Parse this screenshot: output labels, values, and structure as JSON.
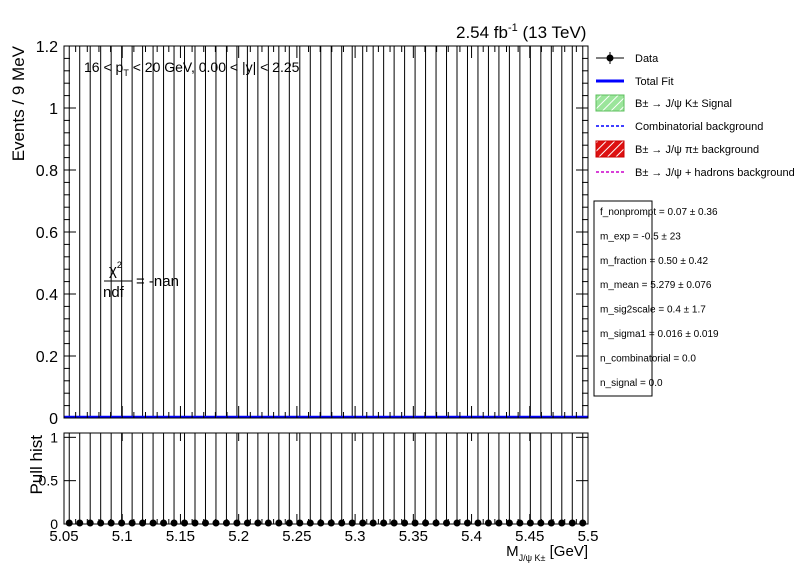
{
  "header": {
    "lumi_value": "2.54 fb",
    "lumi_exp": "-1",
    "lumi_energy": " (13 TeV)"
  },
  "cut_label": {
    "pre": "16 < p",
    "sub": "T",
    "post": " < 20 GeV, 0.00 < |y| < 2.25"
  },
  "chi2": {
    "numerator": "χ",
    "numerator_sup": "2",
    "denominator": "ndf",
    "value": "= -nan"
  },
  "legend": {
    "items": [
      {
        "label": "Data",
        "kind": "marker",
        "color": "#000000"
      },
      {
        "label": "Total Fit",
        "kind": "line",
        "color": "#0000ff"
      },
      {
        "label": "B<sup>±</sup> → J/ψ K<sup>±</sup> Signal",
        "text": "B± → J/ψ K± Signal",
        "kind": "hatch-green",
        "color": "#6fcf6f"
      },
      {
        "label": "Combinatorial background",
        "kind": "dashed",
        "color": "#0000ff"
      },
      {
        "label": "B± → J/ψ π± background",
        "kind": "hatch-red",
        "color": "#cc0000"
      },
      {
        "label": "B± → J/ψ + hadrons background",
        "kind": "dashed",
        "color": "#cc00cc"
      }
    ]
  },
  "params": [
    "f_nonprompt =  0.07 ± 0.36",
    "m_exp = -0.5 ± 23",
    "m_fraction =  0.50 ± 0.42",
    "m_mean =  5.279 ± 0.076",
    "m_sig2scale =  0.4 ± 1.7",
    "m_sigma1 =  0.016 ± 0.019",
    "n_combinatorial =  0.0",
    "n_signal =  0.0"
  ],
  "chart_data": [
    {
      "type": "scatter",
      "panel": "main",
      "ylabel": "Events / 9 MeV",
      "xlim": [
        5.05,
        5.5
      ],
      "ylim": [
        0,
        1.2
      ],
      "y_ticks": [
        "0",
        "0.2",
        "0.4",
        "0.6",
        "0.8",
        "1",
        "1.2"
      ],
      "bin_width": 0.009,
      "n_bins": 50,
      "values_all_bins": 0,
      "error_up_all_bins": 1.2,
      "total_fit_value": 0,
      "total_fit_color": "#0000ff"
    },
    {
      "type": "scatter",
      "panel": "pull",
      "ylabel": "Pull hist",
      "xlabel_main": "M",
      "xlabel_sub": "J/ψ K±",
      "xlabel_unit": " [GeV]",
      "xlim": [
        5.05,
        5.5
      ],
      "ylim": [
        0,
        1.05
      ],
      "y_ticks": [
        "0",
        "0.5",
        "1"
      ],
      "x_ticks": [
        "5.05",
        "5.1",
        "5.15",
        "5.2",
        "5.25",
        "5.3",
        "5.35",
        "5.4",
        "5.45",
        "5.5"
      ],
      "values_all_bins": 0,
      "error_up_all_bins": 1.05
    }
  ]
}
